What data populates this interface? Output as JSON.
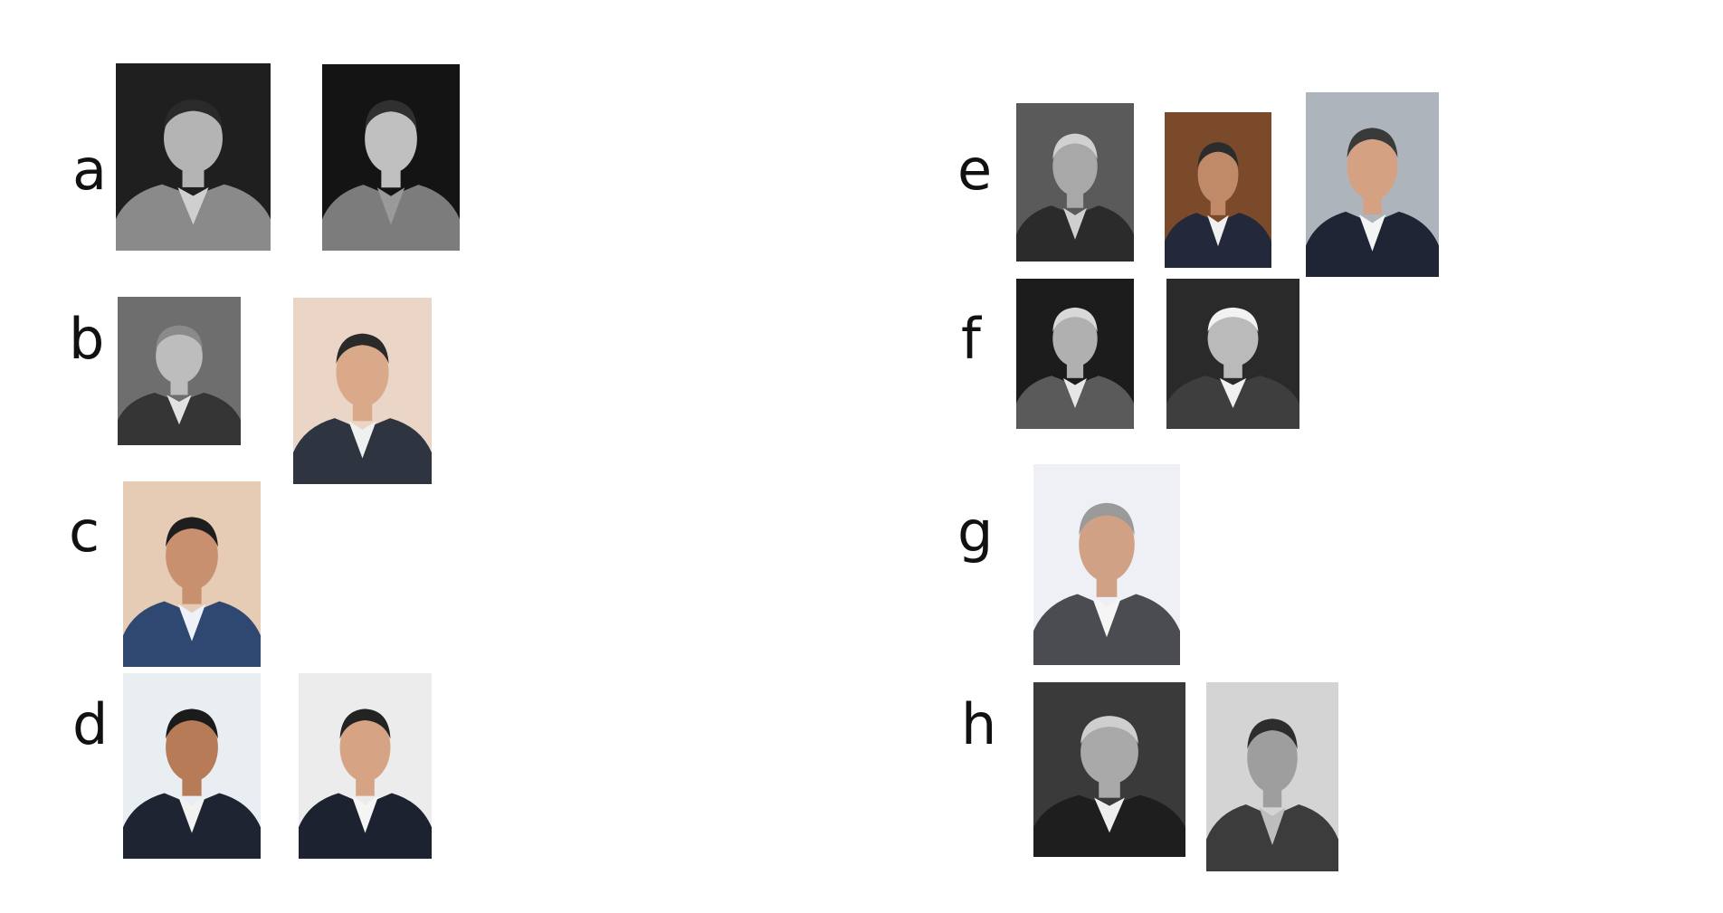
{
  "groups": [
    {
      "label": "a",
      "photos": [
        {
          "name": "photo-a1",
          "bg": "#1f1f1f",
          "suit": "#8a8a8a",
          "skin": "#b4b4b4",
          "hair": "#2a2a2a",
          "shirt": "#cfcfcf"
        },
        {
          "name": "photo-a2",
          "bg": "#141414",
          "suit": "#7c7c7c",
          "skin": "#c0c0c0",
          "hair": "#303030",
          "shirt": "#9a9a9a"
        }
      ]
    },
    {
      "label": "b",
      "photos": [
        {
          "name": "photo-b1",
          "bg": "#6e6e6e",
          "suit": "#353535",
          "skin": "#bdbdbd",
          "hair": "#8a8a8a",
          "shirt": "#e2e2e2"
        },
        {
          "name": "photo-b2",
          "bg": "#ead5c6",
          "suit": "#2e3440",
          "skin": "#d9a98a",
          "hair": "#2a2a2a",
          "shirt": "#f0f0f0"
        }
      ]
    },
    {
      "label": "c",
      "photos": [
        {
          "name": "photo-c1",
          "bg": "#e6cbb5",
          "suit": "#2f4872",
          "skin": "#c99070",
          "hair": "#1e1e1e",
          "shirt": "#eef2f8"
        }
      ]
    },
    {
      "label": "d",
      "photos": [
        {
          "name": "photo-d1",
          "bg": "#e9eef3",
          "suit": "#1f2433",
          "skin": "#b77b58",
          "hair": "#1b1b1b",
          "shirt": "#f2f2f2"
        },
        {
          "name": "photo-d2",
          "bg": "#ececec",
          "suit": "#1d2230",
          "skin": "#d6a385",
          "hair": "#232323",
          "shirt": "#f5f5f5"
        }
      ]
    },
    {
      "label": "e",
      "photos": [
        {
          "name": "photo-e1",
          "bg": "#5a5a5a",
          "suit": "#2b2b2b",
          "skin": "#a8a8a8",
          "hair": "#d0d0d0",
          "shirt": "#cfcfcf"
        },
        {
          "name": "photo-e2",
          "bg": "#7a4a2a",
          "suit": "#23283a",
          "skin": "#c08a68",
          "hair": "#2c2c2c",
          "shirt": "#f0f0f0"
        },
        {
          "name": "photo-e3",
          "bg": "#aeb4bc",
          "suit": "#1f2535",
          "skin": "#d4a283",
          "hair": "#3a3a3a",
          "shirt": "#f4f4f4"
        }
      ]
    },
    {
      "label": "f",
      "photos": [
        {
          "name": "photo-f1",
          "bg": "#1c1c1c",
          "suit": "#5a5a5a",
          "skin": "#b0b0b0",
          "hair": "#d8d8d8",
          "shirt": "#e6e6e6"
        },
        {
          "name": "photo-f2",
          "bg": "#2a2a2a",
          "suit": "#3e3e3e",
          "skin": "#bababa",
          "hair": "#f2f2f2",
          "shirt": "#f0f0f0"
        }
      ]
    },
    {
      "label": "g",
      "photos": [
        {
          "name": "photo-g1",
          "bg": "#eef0f6",
          "suit": "#4a4c52",
          "skin": "#d1a186",
          "hair": "#9a9a9a",
          "shirt": "#f5f5f5"
        }
      ]
    },
    {
      "label": "h",
      "photos": [
        {
          "name": "photo-h1",
          "bg": "#3a3a3a",
          "suit": "#1e1e1e",
          "skin": "#a9a9a9",
          "hair": "#cfcfcf",
          "shirt": "#eeeeee"
        },
        {
          "name": "photo-h2",
          "bg": "#d4d4d4",
          "suit": "#3c3c3c",
          "skin": "#9e9e9e",
          "hair": "#2d2d2d",
          "shirt": "#bdbdbd"
        }
      ]
    }
  ]
}
